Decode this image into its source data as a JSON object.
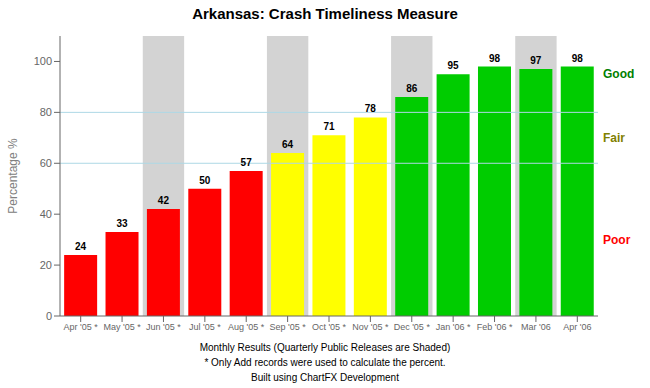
{
  "chart_data": {
    "type": "bar",
    "title": "Arkansas: Crash Timeliness Measure",
    "ylabel": "Percentage %",
    "categories": [
      "Apr '05 *",
      "May '05 *",
      "Jun '05 *",
      "Jul '05 *",
      "Aug '05 *",
      "Sep '05 *",
      "Oct '05 *",
      "Nov '05 *",
      "Dec '05 *",
      "Jan '06 *",
      "Feb '06 *",
      "Mar '06",
      "Apr '06"
    ],
    "values": [
      24,
      33,
      42,
      50,
      57,
      64,
      71,
      78,
      86,
      95,
      98,
      97,
      98
    ],
    "colors": [
      "#FF0000",
      "#FF0000",
      "#FF0000",
      "#FF0000",
      "#FF0000",
      "#FFFF00",
      "#FFFF00",
      "#FFFF00",
      "#00CC00",
      "#00CC00",
      "#00CC00",
      "#00CC00",
      "#00CC00"
    ],
    "ylim": [
      0,
      110
    ],
    "yticks": [
      0,
      20,
      40,
      60,
      80,
      100
    ],
    "grid": false,
    "data_labels": true,
    "reference_lines": {
      "values": [
        80,
        60
      ],
      "color": "#ADD8E6"
    },
    "shaded": {
      "categories": [
        "Jun '05 *",
        "Sep '05 *",
        "Dec '05 *",
        "Mar '06"
      ],
      "color": "#C0C0C0"
    },
    "zone_labels": [
      {
        "text": "Good",
        "color": "#008000"
      },
      {
        "text": "Fair",
        "color": "#808000"
      },
      {
        "text": "Poor",
        "color": "#FF0000"
      }
    ],
    "footnotes": [
      "Monthly Results (Quarterly Public Releases are Shaded)",
      "* Only Add records were used to calculate the percent.",
      "Built using ChartFX Development"
    ]
  }
}
